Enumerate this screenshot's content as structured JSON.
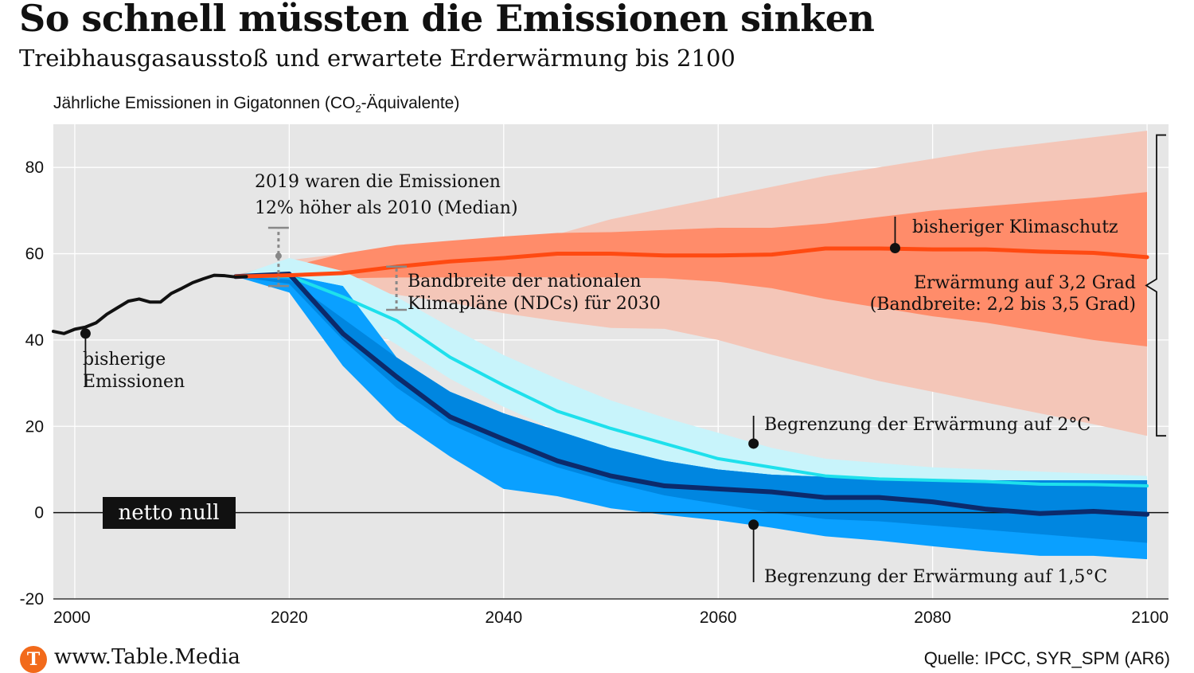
{
  "header": {
    "title": "So schnell müssten die Emissionen sinken",
    "subtitle": "Treibhausgasausstoß und erwartete Erderwärmung bis 2100"
  },
  "footer": {
    "logo_letter": "T",
    "url": "www.Table.Media",
    "source": "Quelle:  IPCC, SYR_SPM (AR6)"
  },
  "colors": {
    "plot_bg": "#e6e6e6",
    "historic": "#111111",
    "current_policy_line": "#ff4a12",
    "current_policy_band_inner": "#ff8c6a",
    "current_policy_band_outer": "#f4c6b8",
    "two_degree_line": "#1ee0ec",
    "two_degree_band_outer": "#c8f4fb",
    "two_degree_band_inner": "#00c3f7",
    "one_five_line": "#0c2a6b",
    "one_five_band_outer": "#0aa0ff",
    "one_five_band_inner": "#0086e0",
    "ndc_range": "#888888"
  },
  "chart_data": {
    "type": "line",
    "title": "So schnell müssten die Emissionen sinken",
    "subtitle": "Treibhausgasausstoß und erwartete Erderwärmung bis 2100",
    "ylabel": "Jährliche Emissionen in Gigatonnen (CO",
    "ylabel_sub": "2",
    "ylabel_tail": "-Äquivalente)",
    "xlim": [
      1998,
      2102
    ],
    "ylim": [
      -20,
      90
    ],
    "xticks": [
      2000,
      2020,
      2040,
      2060,
      2080,
      2100
    ],
    "yticks": [
      -20,
      0,
      20,
      40,
      60,
      80
    ],
    "grid": true,
    "series": [
      {
        "name": "bisherige Emissionen",
        "x": [
          1998,
          1999,
          2000,
          2001,
          2002,
          2003,
          2004,
          2005,
          2006,
          2007,
          2008,
          2009,
          2010,
          2011,
          2012,
          2013,
          2014,
          2015,
          2016
        ],
        "y": [
          42,
          41.5,
          42.5,
          43,
          44,
          46,
          47.5,
          49,
          49.5,
          48.8,
          48.8,
          50.8,
          52,
          53.3,
          54.2,
          55,
          54.9,
          54.6,
          54.7
        ]
      },
      {
        "name": "bisheriger Klimaschutz",
        "x": [
          2015,
          2020,
          2025,
          2030,
          2035,
          2040,
          2045,
          2050,
          2055,
          2060,
          2065,
          2070,
          2075,
          2080,
          2085,
          2090,
          2095,
          2100
        ],
        "y": [
          54.7,
          55,
          55.5,
          57,
          58.2,
          59,
          60,
          60,
          59.6,
          59.6,
          59.8,
          61.2,
          61.2,
          61,
          61,
          60.5,
          60.2,
          59.2
        ],
        "band_inner_upper": [
          55,
          57,
          60,
          62,
          63,
          64,
          64.8,
          65,
          65.5,
          66,
          66,
          67,
          68.5,
          70,
          71,
          72,
          73,
          74.3
        ],
        "band_inner_lower": [
          54.7,
          54.5,
          54.3,
          54.5,
          54.5,
          54.7,
          54.5,
          54.5,
          54.3,
          53.5,
          52,
          49.5,
          47.5,
          45.5,
          44,
          42,
          40,
          38.5
        ],
        "band_outer_upper": [
          55,
          58.5,
          60,
          61,
          61.5,
          63,
          64.5,
          68,
          70.5,
          73,
          75.5,
          78,
          80,
          82,
          84,
          85.5,
          87,
          88.5
        ],
        "band_outer_lower": [
          54.7,
          54,
          52,
          50.5,
          48.7,
          46.2,
          44.4,
          42.8,
          42.6,
          40,
          36.6,
          33.5,
          30.5,
          28,
          25.5,
          23,
          20.5,
          17.8
        ]
      },
      {
        "name": "Begrenzung der Erwärmung auf 2°C",
        "x": [
          2015,
          2020,
          2025,
          2030,
          2035,
          2040,
          2045,
          2050,
          2055,
          2060,
          2065,
          2070,
          2075,
          2080,
          2085,
          2090,
          2095,
          2100
        ],
        "y": [
          54.7,
          54.8,
          50,
          44.5,
          36,
          29.5,
          23.5,
          19.5,
          16,
          12.5,
          10.5,
          8.5,
          7.8,
          7.5,
          7.2,
          6.6,
          6.5,
          6.2
        ],
        "band_outer_upper": [
          54.7,
          59,
          56,
          50,
          43,
          36.5,
          31,
          26,
          22,
          18.5,
          15,
          12.5,
          11.5,
          10.5,
          10,
          9.5,
          9,
          8.5
        ],
        "band_outer_lower": [
          54.7,
          51,
          46.5,
          39,
          31,
          24.5,
          19,
          14.5,
          11,
          8.5,
          6.5,
          5,
          4.5,
          4,
          3.5,
          3.2,
          3.2,
          3
        ],
        "band_inner_upper": [
          54.7,
          55,
          52.5,
          36,
          28,
          23,
          19,
          15,
          12,
          10,
          8.8,
          8.3,
          8,
          7.8,
          7.5,
          7.5,
          7.5,
          7.5
        ],
        "band_inner_lower": [
          54.7,
          52,
          45,
          32,
          23,
          16,
          11,
          7,
          4,
          2,
          0,
          -1.5,
          -2,
          -2.5,
          -3.5,
          -4.5,
          -5.5,
          -6.5
        ]
      },
      {
        "name": "Begrenzung der Erwärmung auf 1,5°C",
        "x": [
          2015,
          2020,
          2025,
          2030,
          2035,
          2040,
          2045,
          2050,
          2055,
          2060,
          2065,
          2070,
          2075,
          2080,
          2085,
          2090,
          2095,
          2100
        ],
        "y": [
          54.7,
          55.3,
          41.5,
          31.5,
          22.2,
          17,
          12,
          8.5,
          6.2,
          5.5,
          4.8,
          3.5,
          3.5,
          2.5,
          0.8,
          -0.2,
          0.3,
          -0.4
        ],
        "band_outer_upper": [
          54.7,
          55,
          52.5,
          36,
          28,
          23,
          19,
          15,
          12,
          10,
          8.8,
          8.3,
          8,
          7.8,
          7.5,
          7.5,
          7.5,
          7.5
        ],
        "band_outer_lower": [
          54.7,
          51,
          34,
          21.5,
          13,
          5.5,
          3.8,
          1,
          -0.5,
          -1.8,
          -3.5,
          -5.5,
          -6.5,
          -7.8,
          -9,
          -10,
          -10,
          -10.8
        ],
        "band_inner_upper": [
          54.7,
          54,
          45,
          36,
          28,
          23,
          19,
          15,
          12,
          10,
          8.8,
          8.3,
          8,
          7.8,
          7.5,
          7.5,
          7.5,
          7.5
        ],
        "band_inner_lower": [
          54.7,
          53,
          40,
          29,
          20.5,
          15,
          10.5,
          7,
          4,
          2,
          0,
          -1.5,
          -2,
          -3,
          -4,
          -5,
          -6,
          -7
        ]
      }
    ],
    "ndc_range": {
      "x": 2030,
      "low": 47,
      "high": 57
    },
    "emissions_2019": {
      "x": 2019,
      "low": 52.5,
      "mid": 59.5,
      "high": 66
    },
    "warming_bracket": {
      "low": 17.8,
      "high": 87.5
    },
    "annotations": {
      "emissions_2019_line1": "2019 waren die Emissionen",
      "emissions_2019_line2": "12% höher als 2010 (Median)",
      "ndc_line1": "Bandbreite der nationalen",
      "ndc_line2": "Klimapläne (NDCs) für 2030",
      "historic_line1": "bisherige",
      "historic_line2": "Emissionen",
      "current_policy": "bisheriger Klimaschutz",
      "warming_line1": "Erwärmung auf 3,2 Grad",
      "warming_line2": "(Bandbreite: 2,2 bis 3,5 Grad)",
      "two_degree": "Begrenzung der Erwärmung auf 2°C",
      "one_five": "Begrenzung der Erwärmung auf 1,5°C",
      "net_zero": "netto null"
    }
  }
}
